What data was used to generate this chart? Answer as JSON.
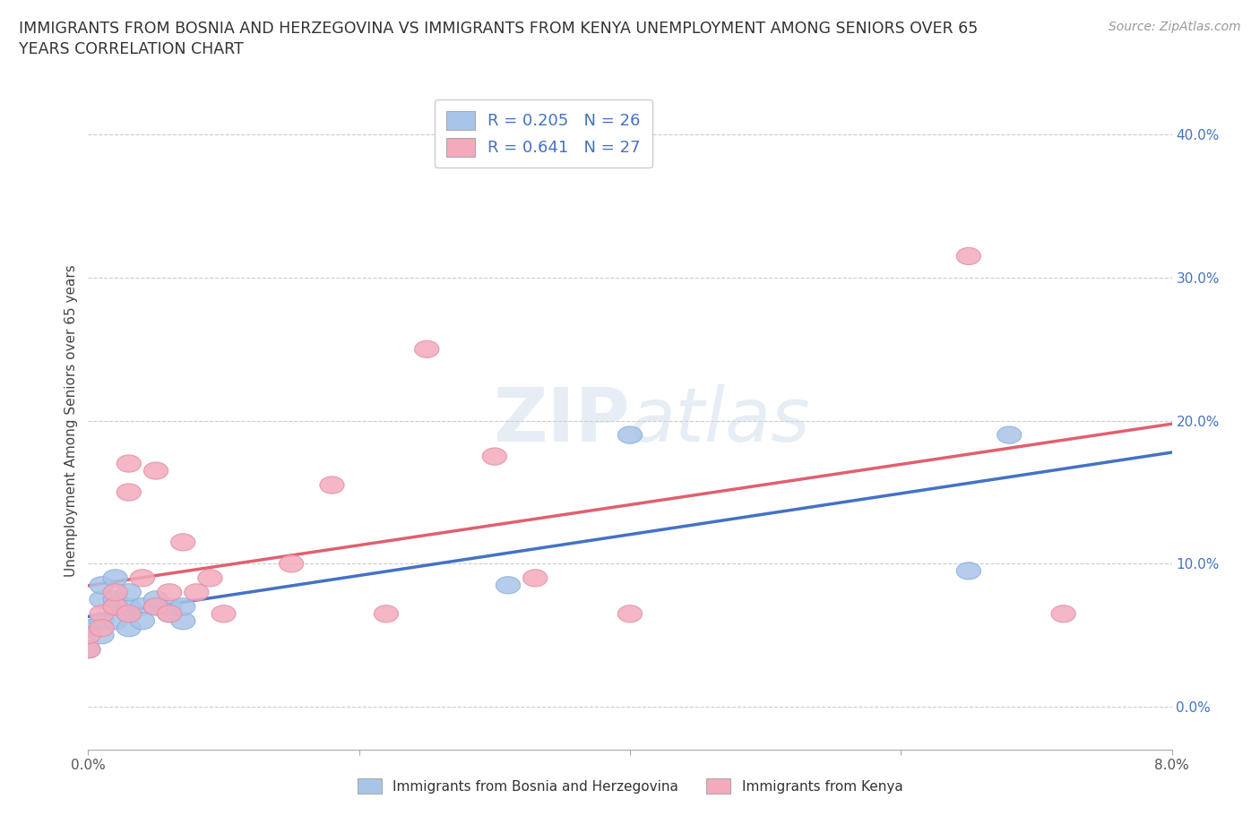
{
  "title_line1": "IMMIGRANTS FROM BOSNIA AND HERZEGOVINA VS IMMIGRANTS FROM KENYA UNEMPLOYMENT AMONG SENIORS OVER 65",
  "title_line2": "YEARS CORRELATION CHART",
  "source": "Source: ZipAtlas.com",
  "ylabel": "Unemployment Among Seniors over 65 years",
  "xlim": [
    0.0,
    0.08
  ],
  "ylim": [
    -0.03,
    0.43
  ],
  "yticks": [
    0.0,
    0.1,
    0.2,
    0.3,
    0.4
  ],
  "xticks": [
    0.0,
    0.02,
    0.04,
    0.06,
    0.08
  ],
  "bosnia_color": "#a8c4e8",
  "kenya_color": "#f4aabc",
  "bosnia_line_color": "#4472c4",
  "kenya_line_color": "#e06070",
  "R_bosnia": 0.205,
  "N_bosnia": 26,
  "R_kenya": 0.641,
  "N_kenya": 27,
  "watermark": "ZIPatlas",
  "bosnia_x": [
    0.0,
    0.0,
    0.001,
    0.001,
    0.001,
    0.001,
    0.002,
    0.002,
    0.002,
    0.002,
    0.003,
    0.003,
    0.003,
    0.003,
    0.004,
    0.004,
    0.005,
    0.005,
    0.006,
    0.006,
    0.007,
    0.007,
    0.031,
    0.04,
    0.065,
    0.068
  ],
  "bosnia_y": [
    0.055,
    0.04,
    0.075,
    0.06,
    0.05,
    0.085,
    0.07,
    0.06,
    0.075,
    0.09,
    0.065,
    0.07,
    0.08,
    0.055,
    0.07,
    0.06,
    0.07,
    0.075,
    0.065,
    0.07,
    0.06,
    0.07,
    0.085,
    0.19,
    0.095,
    0.19
  ],
  "kenya_x": [
    0.0,
    0.0,
    0.001,
    0.001,
    0.002,
    0.002,
    0.003,
    0.003,
    0.003,
    0.004,
    0.005,
    0.005,
    0.006,
    0.006,
    0.007,
    0.008,
    0.009,
    0.01,
    0.015,
    0.018,
    0.022,
    0.025,
    0.03,
    0.033,
    0.04,
    0.065,
    0.072
  ],
  "kenya_y": [
    0.04,
    0.05,
    0.065,
    0.055,
    0.07,
    0.08,
    0.065,
    0.17,
    0.15,
    0.09,
    0.07,
    0.165,
    0.065,
    0.08,
    0.115,
    0.08,
    0.09,
    0.065,
    0.1,
    0.155,
    0.065,
    0.25,
    0.175,
    0.09,
    0.065,
    0.315,
    0.065
  ]
}
